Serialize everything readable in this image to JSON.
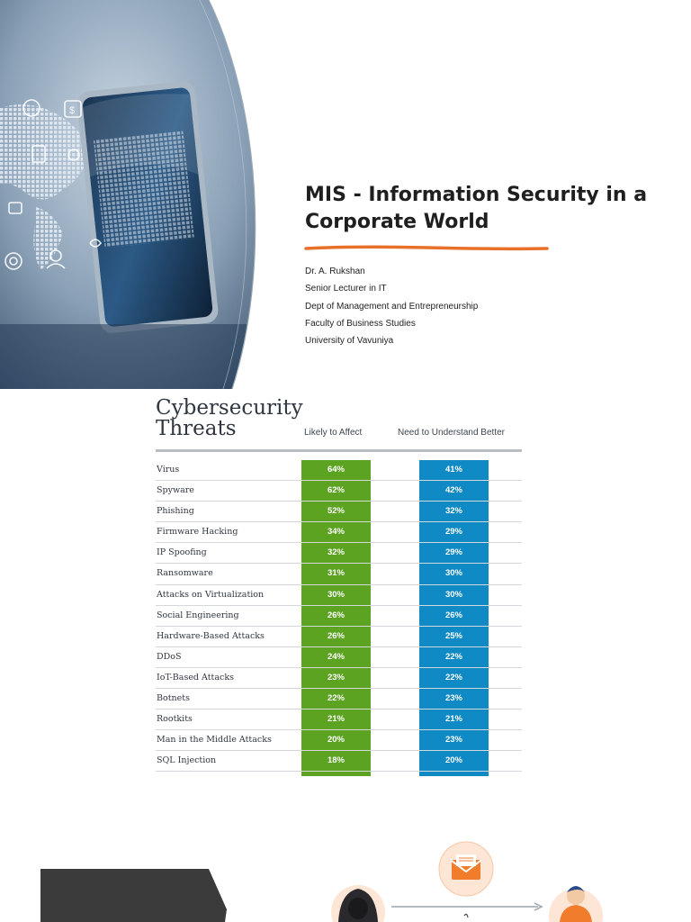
{
  "slide1": {
    "title_line1": "MIS - Information Security in a",
    "title_line2": "Corporate World",
    "author_lines": [
      "Dr. A. Rukshan",
      "Senior Lecturer in IT",
      "Dept of Management and Entrepreneurship",
      "Faculty of Business Studies",
      "University of Vavuniya"
    ],
    "accent_color": "#e8702a"
  },
  "slide2": {
    "title_line1": "Cybersecurity",
    "title_line2": "Threats",
    "col_likely": "Likely to Affect",
    "col_need": "Need to Understand Better",
    "likely_color": "#5ca322",
    "need_color": "#0f8ac4",
    "rows": [
      {
        "label": "Virus",
        "likely": "64%",
        "need": "41%"
      },
      {
        "label": "Spyware",
        "likely": "62%",
        "need": "42%"
      },
      {
        "label": "Phishing",
        "likely": "52%",
        "need": "32%"
      },
      {
        "label": "Firmware Hacking",
        "likely": "34%",
        "need": "29%"
      },
      {
        "label": "IP Spoofing",
        "likely": "32%",
        "need": "29%"
      },
      {
        "label": "Ransomware",
        "likely": "31%",
        "need": "30%"
      },
      {
        "label": "Attacks on Virtualization",
        "likely": "30%",
        "need": "30%"
      },
      {
        "label": "Social Engineering",
        "likely": "26%",
        "need": "26%"
      },
      {
        "label": "Hardware-Based Attacks",
        "likely": "26%",
        "need": "25%"
      },
      {
        "label": "DDoS",
        "likely": "24%",
        "need": "22%"
      },
      {
        "label": "IoT-Based Attacks",
        "likely": "23%",
        "need": "22%"
      },
      {
        "label": "Botnets",
        "likely": "22%",
        "need": "23%"
      },
      {
        "label": "Rootkits",
        "likely": "21%",
        "need": "21%"
      },
      {
        "label": "Man in the Middle Attacks",
        "likely": "20%",
        "need": "23%"
      },
      {
        "label": "SQL Injection",
        "likely": "18%",
        "need": "20%"
      }
    ]
  },
  "slide3": {
    "icons": [
      "hacker-icon",
      "envelope-icon",
      "user-icon",
      "arrow-icon"
    ]
  }
}
